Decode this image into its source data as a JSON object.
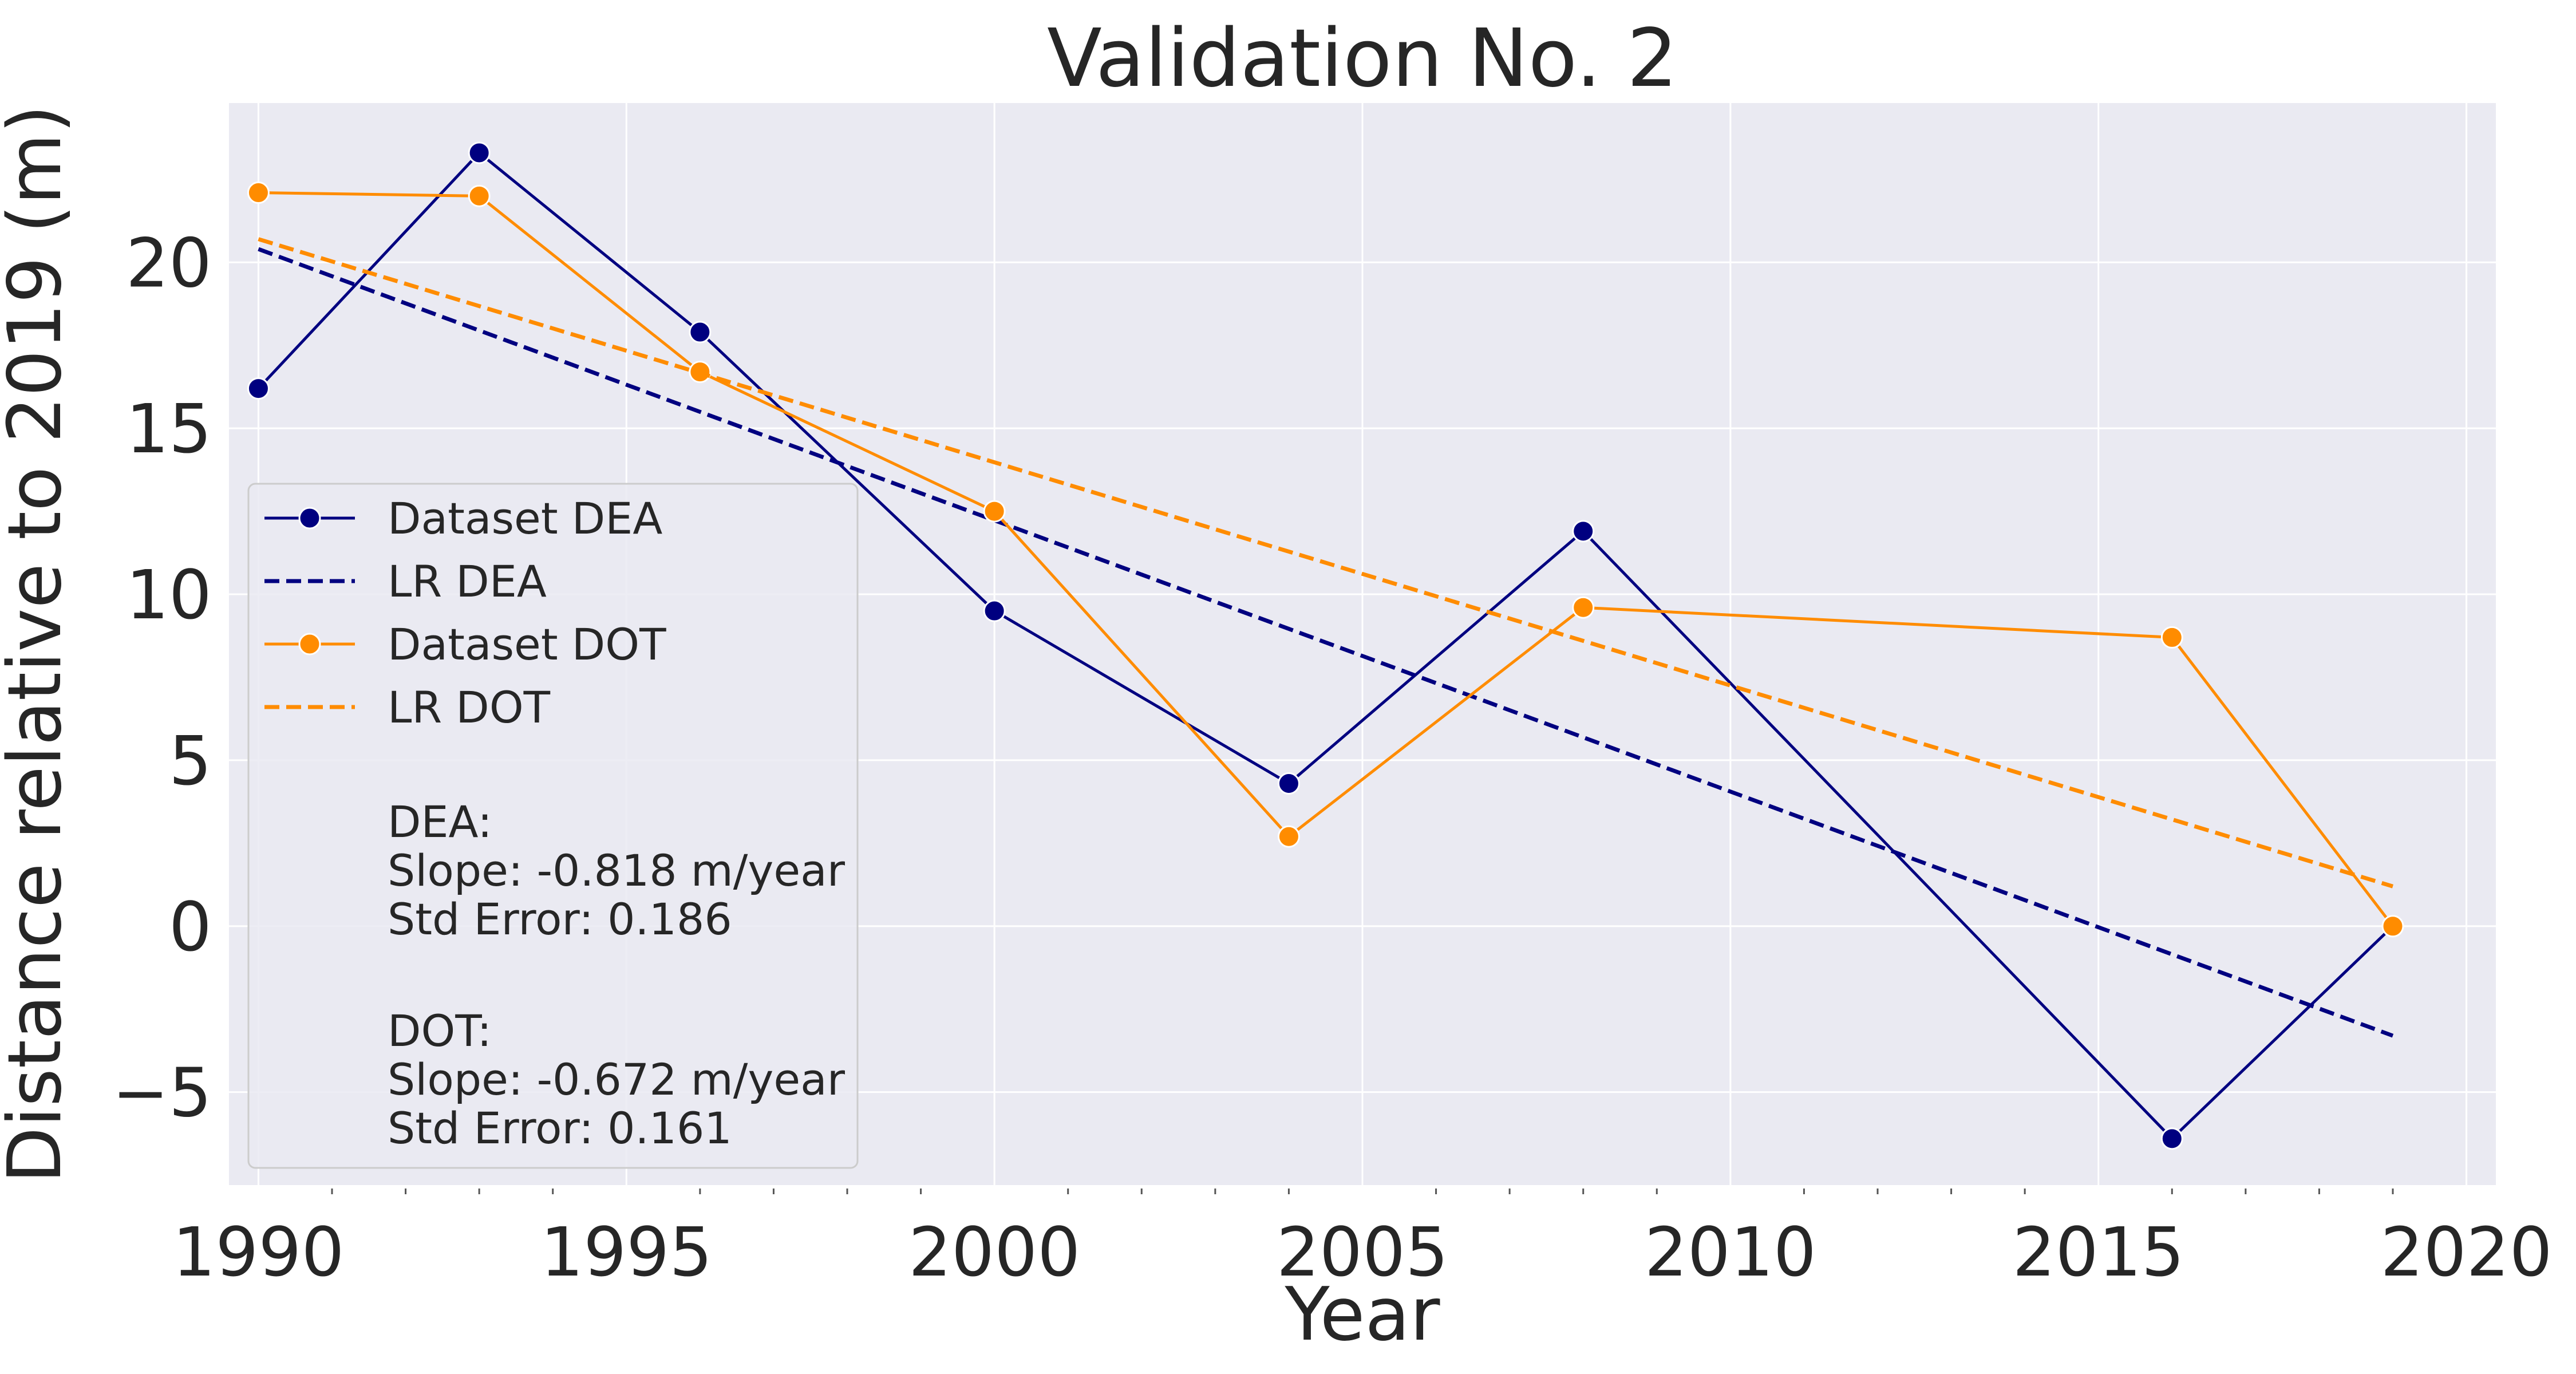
{
  "chart_data": {
    "type": "line",
    "title": "Validation No. 2",
    "xlabel": "Year",
    "ylabel": "Distance relative to 2019 (m)",
    "xlim": [
      1989.6,
      2020.4
    ],
    "ylim": [
      -7.8,
      24.8
    ],
    "x_ticks": [
      1990,
      1995,
      2000,
      2005,
      2010,
      2015,
      2020
    ],
    "x_tick_labels": [
      "1990",
      "1995",
      "2000",
      "2005",
      "2010",
      "2015",
      "2020"
    ],
    "y_ticks": [
      -5,
      0,
      5,
      10,
      15,
      20
    ],
    "y_tick_labels": [
      "−5",
      "0",
      "5",
      "10",
      "15",
      "20"
    ],
    "grid": true,
    "legend_position": "left",
    "series": [
      {
        "name": "Dataset DEA",
        "style": "solid-marker",
        "color": "#000080",
        "x": [
          1990,
          1993,
          1996,
          2000,
          2004,
          2008,
          2016,
          2019
        ],
        "y": [
          16.2,
          23.3,
          17.9,
          9.5,
          4.3,
          11.9,
          -6.4,
          0.0
        ]
      },
      {
        "name": "LR DEA",
        "style": "dashed",
        "color": "#000080",
        "x": [
          1990,
          2019
        ],
        "y": [
          20.4,
          -3.3
        ]
      },
      {
        "name": "Dataset DOT",
        "style": "solid-marker",
        "color": "#ff8c00",
        "x": [
          1990,
          1993,
          1996,
          2000,
          2004,
          2008,
          2016,
          2019
        ],
        "y": [
          22.1,
          22.0,
          16.7,
          12.5,
          2.7,
          9.6,
          8.7,
          0.0
        ]
      },
      {
        "name": "LR DOT",
        "style": "dashed",
        "color": "#ff8c00",
        "x": [
          1990,
          2019
        ],
        "y": [
          20.7,
          1.2
        ]
      }
    ],
    "annotations": [
      {
        "header": "DEA:",
        "slope": "Slope: -0.818 m/year",
        "stderr": "Std Error: 0.186"
      },
      {
        "header": "DOT:",
        "slope": "Slope: -0.672 m/year",
        "stderr": "Std Error: 0.161"
      }
    ],
    "colors": {
      "background": "#eaeaf2",
      "grid": "#ffffff",
      "text": "#262626"
    }
  }
}
